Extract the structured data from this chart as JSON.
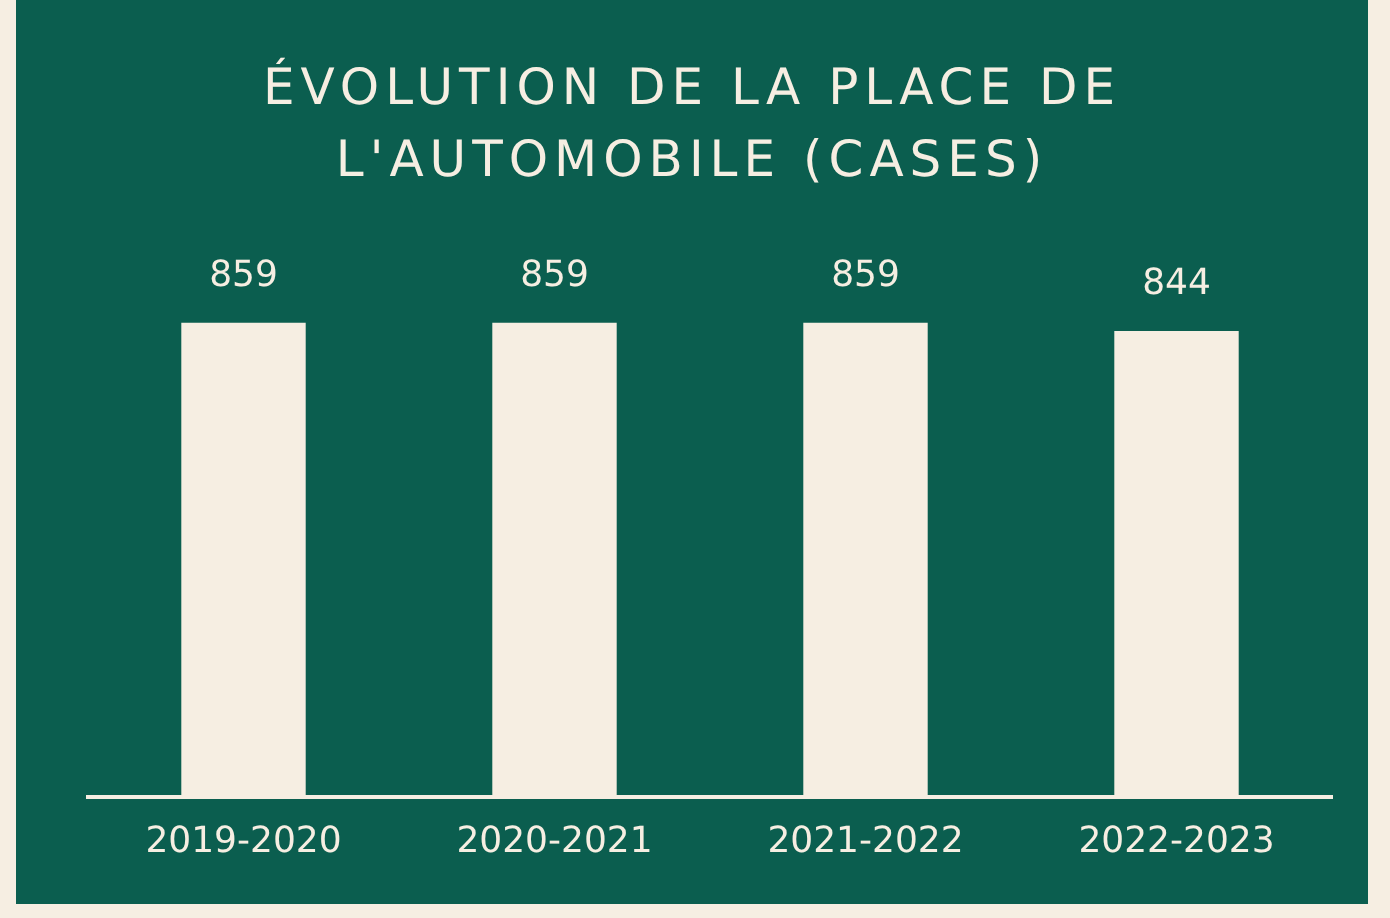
{
  "chart_data": {
    "type": "bar",
    "title": "ÉVOLUTION DE LA PLACE DE L'AUTOMOBILE (CASES)",
    "categories": [
      "2019-2020",
      "2020-2021",
      "2021-2022",
      "2022-2023"
    ],
    "values": [
      859,
      859,
      859,
      844
    ],
    "color": "#f6eee2",
    "data_labels": true,
    "grid": false,
    "legend": false
  }
}
